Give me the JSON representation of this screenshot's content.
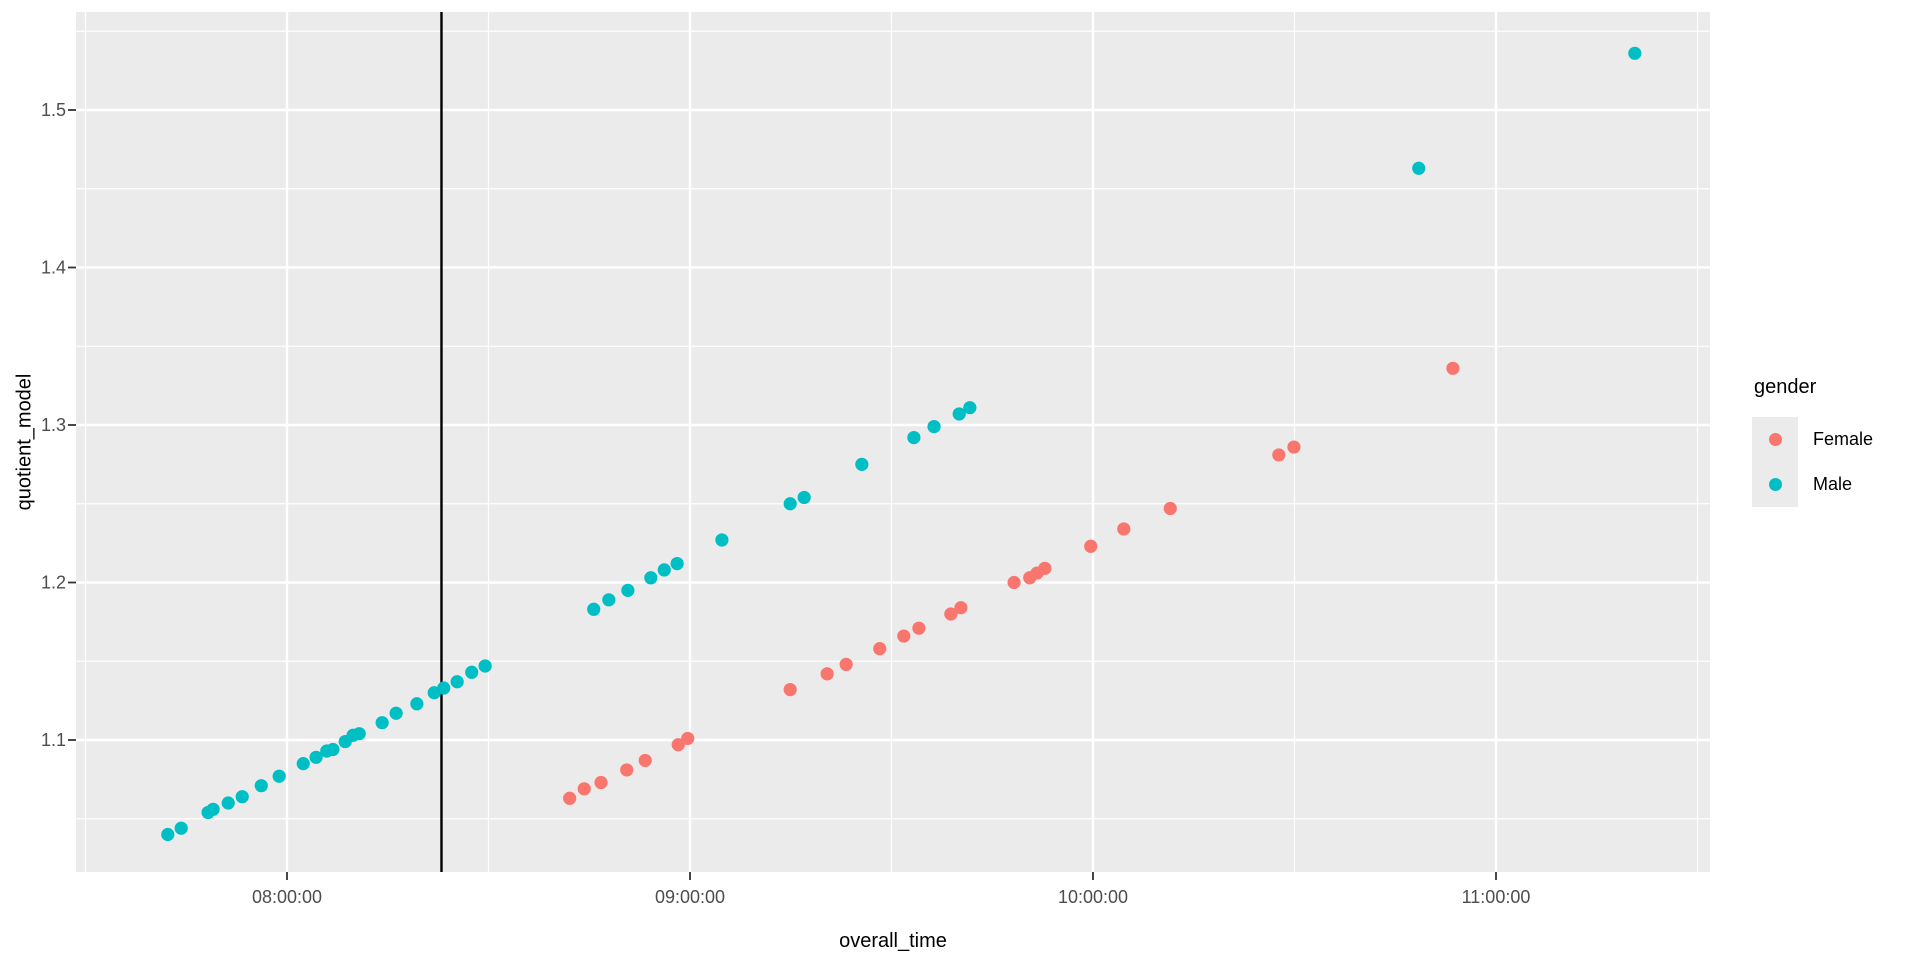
{
  "figure": {
    "background": "#FFFFFF",
    "panel_background": "#EBEBEB",
    "grid_color": "#FFFFFF",
    "tick_mark_color": "#333333",
    "tick_label_color": "#4D4D4D",
    "axis_title_color": "#000000"
  },
  "chart_data": {
    "type": "scatter",
    "title": "",
    "xlabel": "overall_time",
    "ylabel": "quotient_model",
    "grid": "on",
    "legend_position": "right",
    "x_axis": {
      "ticks": [
        "08:00:00",
        "09:00:00",
        "10:00:00",
        "11:00:00"
      ],
      "minor_ticks": [
        "07:30:00",
        "08:30:00",
        "09:30:00",
        "10:30:00",
        "11:30:00"
      ],
      "range": [
        "07:28:30",
        "11:31:50"
      ]
    },
    "y_axis": {
      "ticks": [
        1.1,
        1.2,
        1.3,
        1.4,
        1.5
      ],
      "tick_labels": [
        "1.1",
        "1.2",
        "1.3",
        "1.4",
        "1.5"
      ],
      "minor_ticks": [
        1.05,
        1.15,
        1.25,
        1.35,
        1.45,
        1.55
      ],
      "range": [
        1.016,
        1.562
      ]
    },
    "vline": {
      "x": "08:23:00",
      "color": "#000000"
    },
    "legend": {
      "title": "gender",
      "entries": [
        {
          "label": "Female",
          "color": "#F8766D"
        },
        {
          "label": "Male",
          "color": "#00BFC4"
        }
      ]
    },
    "series": [
      {
        "name": "Female",
        "color": "#F8766D",
        "points": [
          [
            "08:42:05",
            1.063
          ],
          [
            "08:44:15",
            1.069
          ],
          [
            "08:46:45",
            1.073
          ],
          [
            "08:50:35",
            1.081
          ],
          [
            "08:53:20",
            1.087
          ],
          [
            "08:58:15",
            1.097
          ],
          [
            "08:59:40",
            1.101
          ],
          [
            "09:14:55",
            1.132
          ],
          [
            "09:20:25",
            1.142
          ],
          [
            "09:23:15",
            1.148
          ],
          [
            "09:28:15",
            1.158
          ],
          [
            "09:31:50",
            1.166
          ],
          [
            "09:34:05",
            1.171
          ],
          [
            "09:38:50",
            1.18
          ],
          [
            "09:40:20",
            1.184
          ],
          [
            "09:48:15",
            1.2
          ],
          [
            "09:50:35",
            1.203
          ],
          [
            "09:51:40",
            1.206
          ],
          [
            "09:52:50",
            1.209
          ],
          [
            "09:59:40",
            1.223
          ],
          [
            "10:04:35",
            1.234
          ],
          [
            "10:11:30",
            1.247
          ],
          [
            "10:27:40",
            1.281
          ],
          [
            "10:29:55",
            1.286
          ],
          [
            "10:53:35",
            1.336
          ]
        ]
      },
      {
        "name": "Male",
        "color": "#00BFC4",
        "points": [
          [
            "07:42:15",
            1.04
          ],
          [
            "07:44:15",
            1.044
          ],
          [
            "07:48:15",
            1.054
          ],
          [
            "07:49:00",
            1.056
          ],
          [
            "07:51:15",
            1.06
          ],
          [
            "07:53:20",
            1.064
          ],
          [
            "07:56:10",
            1.071
          ],
          [
            "07:58:50",
            1.077
          ],
          [
            "08:02:25",
            1.085
          ],
          [
            "08:04:20",
            1.089
          ],
          [
            "08:05:55",
            1.093
          ],
          [
            "08:06:50",
            1.094
          ],
          [
            "08:08:40",
            1.099
          ],
          [
            "08:09:50",
            1.103
          ],
          [
            "08:10:45",
            1.104
          ],
          [
            "08:14:10",
            1.111
          ],
          [
            "08:16:15",
            1.117
          ],
          [
            "08:19:20",
            1.123
          ],
          [
            "08:21:55",
            1.13
          ],
          [
            "08:23:20",
            1.133
          ],
          [
            "08:25:20",
            1.137
          ],
          [
            "08:27:30",
            1.143
          ],
          [
            "08:29:30",
            1.147
          ],
          [
            "08:45:40",
            1.183
          ],
          [
            "08:47:55",
            1.189
          ],
          [
            "08:50:45",
            1.195
          ],
          [
            "08:54:10",
            1.203
          ],
          [
            "08:56:10",
            1.208
          ],
          [
            "08:58:05",
            1.212
          ],
          [
            "09:04:45",
            1.227
          ],
          [
            "09:14:55",
            1.25
          ],
          [
            "09:17:00",
            1.254
          ],
          [
            "09:25:35",
            1.275
          ],
          [
            "09:33:20",
            1.292
          ],
          [
            "09:36:20",
            1.299
          ],
          [
            "09:40:05",
            1.307
          ],
          [
            "09:41:40",
            1.311
          ],
          [
            "10:48:30",
            1.463
          ],
          [
            "11:20:40",
            1.536
          ]
        ]
      }
    ]
  }
}
